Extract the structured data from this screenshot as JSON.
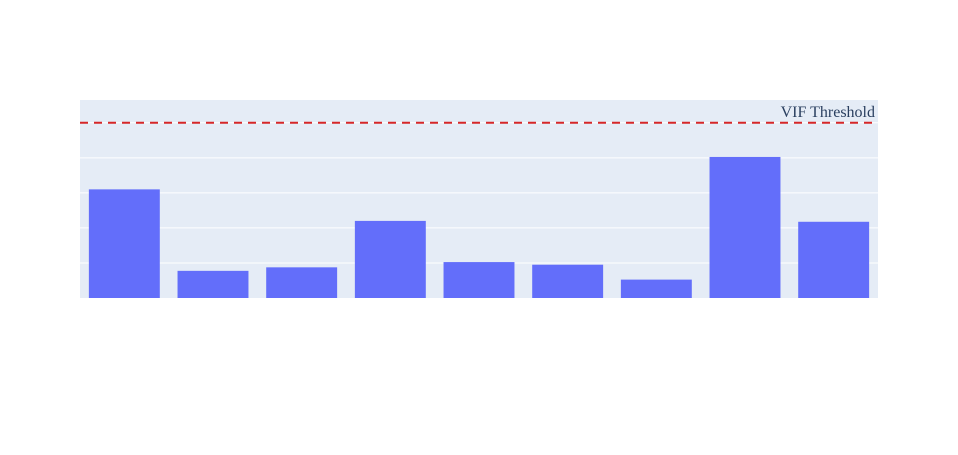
{
  "chart_data": {
    "type": "bar",
    "categories": [
      "",
      "",
      "",
      "",
      "",
      "",
      "",
      "",
      ""
    ],
    "series": [
      {
        "values": [
          6.2,
          1.55,
          1.75,
          4.4,
          2.05,
          1.9,
          1.05,
          8.05,
          4.35
        ]
      }
    ],
    "threshold": {
      "value": 10,
      "label": "VIF Threshold",
      "color": "#d62728",
      "style": "dashed"
    },
    "ylim": [
      0,
      11.3
    ],
    "grid": true,
    "bar_color": "#636efa",
    "plot_background": "#e5ecf6",
    "title": "",
    "xlabel": "",
    "ylabel": ""
  }
}
